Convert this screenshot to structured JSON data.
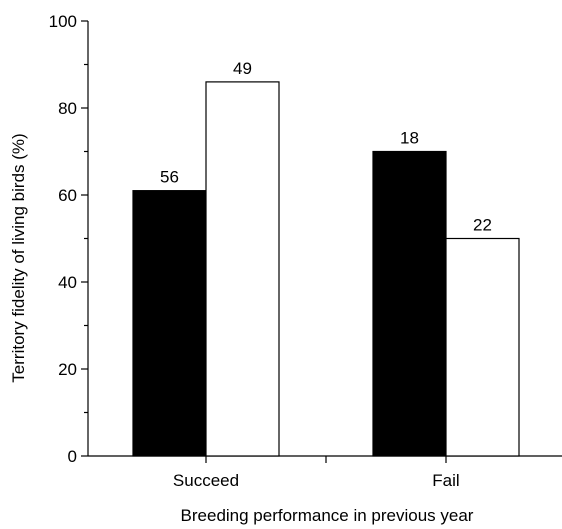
{
  "chart_data": {
    "type": "bar",
    "title": "",
    "xlabel": "Breeding performance in previous year",
    "ylabel": "Territory fidelity of living birds (%)",
    "ylim": [
      0,
      100
    ],
    "yticks": [
      0,
      20,
      40,
      60,
      80,
      100
    ],
    "categories": [
      "Succeed",
      "Fail"
    ],
    "series": [
      {
        "values": [
          61,
          70
        ],
        "labels": [
          "56",
          "18"
        ],
        "color": "#000000"
      },
      {
        "values": [
          86,
          50
        ],
        "labels": [
          "49",
          "22"
        ],
        "color": "#ffffff"
      }
    ],
    "grid": false,
    "legend": "none"
  }
}
